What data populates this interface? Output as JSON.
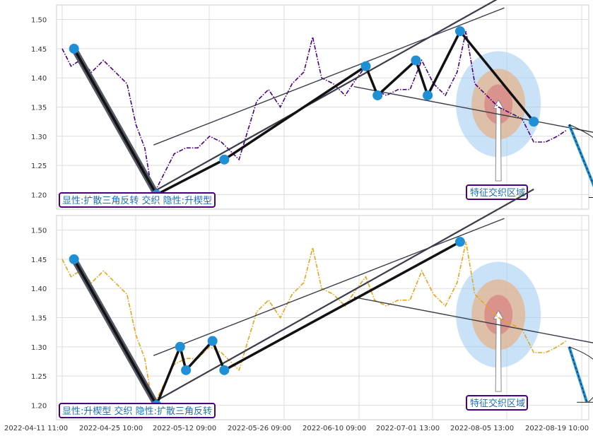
{
  "chart_data": [
    {
      "type": "line",
      "panel": "top",
      "series_color": "#4b0082",
      "ylim": [
        1.175,
        1.525
      ],
      "yticks": [
        "1.20",
        "1.25",
        "1.30",
        "1.35",
        "1.40",
        "1.45",
        "1.50"
      ],
      "xticks": [
        "2022-04-11 11:00",
        "2022-04-25 10:00",
        "2022-05-12 09:00",
        "2022-05-26 09:00",
        "2022-06-10 09:00",
        "2022-07-01 13:00",
        "2022-08-05 13:00",
        "2022-08-19 10:00"
      ],
      "price_path": [
        [
          0,
          1.45
        ],
        [
          3,
          1.42
        ],
        [
          6,
          1.43
        ],
        [
          10,
          1.41
        ],
        [
          14,
          1.43
        ],
        [
          18,
          1.41
        ],
        [
          22,
          1.39
        ],
        [
          25,
          1.32
        ],
        [
          28,
          1.28
        ],
        [
          30,
          1.22
        ],
        [
          32,
          1.21
        ],
        [
          35,
          1.24
        ],
        [
          38,
          1.27
        ],
        [
          42,
          1.28
        ],
        [
          46,
          1.28
        ],
        [
          50,
          1.3
        ],
        [
          54,
          1.29
        ],
        [
          58,
          1.27
        ],
        [
          60,
          1.26
        ],
        [
          63,
          1.31
        ],
        [
          66,
          1.36
        ],
        [
          70,
          1.38
        ],
        [
          74,
          1.35
        ],
        [
          78,
          1.39
        ],
        [
          82,
          1.41
        ],
        [
          85,
          1.47
        ],
        [
          88,
          1.4
        ],
        [
          92,
          1.39
        ],
        [
          96,
          1.37
        ],
        [
          100,
          1.4
        ],
        [
          103,
          1.42
        ],
        [
          106,
          1.38
        ],
        [
          110,
          1.37
        ],
        [
          114,
          1.38
        ],
        [
          118,
          1.38
        ],
        [
          122,
          1.43
        ],
        [
          126,
          1.39
        ],
        [
          130,
          1.37
        ],
        [
          134,
          1.41
        ],
        [
          137,
          1.48
        ],
        [
          140,
          1.39
        ],
        [
          144,
          1.37
        ],
        [
          148,
          1.35
        ],
        [
          152,
          1.34
        ],
        [
          156,
          1.33
        ],
        [
          158,
          1.31
        ],
        [
          160,
          1.29
        ],
        [
          164,
          1.29
        ],
        [
          168,
          1.3
        ],
        [
          171,
          1.31
        ]
      ],
      "pivots": [
        [
          4,
          1.45
        ],
        [
          32,
          1.2
        ],
        [
          55,
          1.26
        ],
        [
          103,
          1.42
        ],
        [
          107,
          1.37
        ],
        [
          120,
          1.43
        ],
        [
          124,
          1.37
        ],
        [
          135,
          1.48
        ],
        [
          160,
          1.325
        ]
      ],
      "trend_lines": [
        [
          [
            31,
            1.205
          ],
          [
            160,
            1.57
          ]
        ],
        [
          [
            31,
            1.285
          ],
          [
            150,
            1.52
          ]
        ],
        [
          [
            99,
            1.385
          ],
          [
            182,
            1.305
          ]
        ]
      ],
      "projection": [
        [
          172,
          1.32
        ],
        [
          182,
          1.195
        ]
      ],
      "zone_center": [
        148,
        1.355
      ],
      "annotation_left": "显性:扩散三角反转 交织 隐性:升楔型",
      "annotation_right": "特征交织区域"
    },
    {
      "type": "line",
      "panel": "bottom",
      "series_color": "#e8a317",
      "ylim": [
        1.175,
        1.525
      ],
      "yticks": [
        "1.20",
        "1.25",
        "1.30",
        "1.35",
        "1.40",
        "1.45",
        "1.50"
      ],
      "xticks": [
        "2022-04-11 11:00",
        "2022-04-25 10:00",
        "2022-05-12 09:00",
        "2022-05-26 09:00",
        "2022-06-10 09:00",
        "2022-07-01 13:00",
        "2022-08-05 13:00",
        "2022-08-19 10:00"
      ],
      "price_path": [
        [
          0,
          1.45
        ],
        [
          3,
          1.42
        ],
        [
          6,
          1.43
        ],
        [
          10,
          1.41
        ],
        [
          14,
          1.43
        ],
        [
          18,
          1.41
        ],
        [
          22,
          1.39
        ],
        [
          25,
          1.32
        ],
        [
          28,
          1.28
        ],
        [
          30,
          1.22
        ],
        [
          32,
          1.21
        ],
        [
          35,
          1.24
        ],
        [
          38,
          1.27
        ],
        [
          42,
          1.28
        ],
        [
          46,
          1.28
        ],
        [
          50,
          1.3
        ],
        [
          54,
          1.29
        ],
        [
          58,
          1.27
        ],
        [
          60,
          1.26
        ],
        [
          63,
          1.31
        ],
        [
          66,
          1.36
        ],
        [
          70,
          1.38
        ],
        [
          74,
          1.35
        ],
        [
          78,
          1.39
        ],
        [
          82,
          1.41
        ],
        [
          85,
          1.47
        ],
        [
          88,
          1.4
        ],
        [
          92,
          1.39
        ],
        [
          96,
          1.37
        ],
        [
          100,
          1.4
        ],
        [
          103,
          1.42
        ],
        [
          106,
          1.38
        ],
        [
          110,
          1.37
        ],
        [
          114,
          1.38
        ],
        [
          118,
          1.38
        ],
        [
          122,
          1.43
        ],
        [
          126,
          1.39
        ],
        [
          130,
          1.37
        ],
        [
          134,
          1.41
        ],
        [
          137,
          1.48
        ],
        [
          140,
          1.39
        ],
        [
          144,
          1.37
        ],
        [
          148,
          1.35
        ],
        [
          152,
          1.34
        ],
        [
          156,
          1.33
        ],
        [
          158,
          1.31
        ],
        [
          160,
          1.29
        ],
        [
          164,
          1.29
        ],
        [
          168,
          1.3
        ],
        [
          171,
          1.31
        ]
      ],
      "pivots": [
        [
          4,
          1.45
        ],
        [
          32,
          1.2
        ],
        [
          40,
          1.3
        ],
        [
          42,
          1.26
        ],
        [
          51,
          1.31
        ],
        [
          55,
          1.26
        ],
        [
          135,
          1.48
        ]
      ],
      "trend_lines": [
        [
          [
            31,
            1.205
          ],
          [
            160,
            1.57
          ]
        ],
        [
          [
            31,
            1.285
          ],
          [
            150,
            1.52
          ]
        ],
        [
          [
            99,
            1.385
          ],
          [
            182,
            1.305
          ]
        ]
      ],
      "projection": [
        [
          172,
          1.3
        ],
        [
          178,
          1.205
        ]
      ],
      "zone_center": [
        148,
        1.355
      ],
      "annotation_left": "显性:升楔型 交织 隐性:扩散三角反转",
      "annotation_right": "特征交织区域"
    }
  ]
}
